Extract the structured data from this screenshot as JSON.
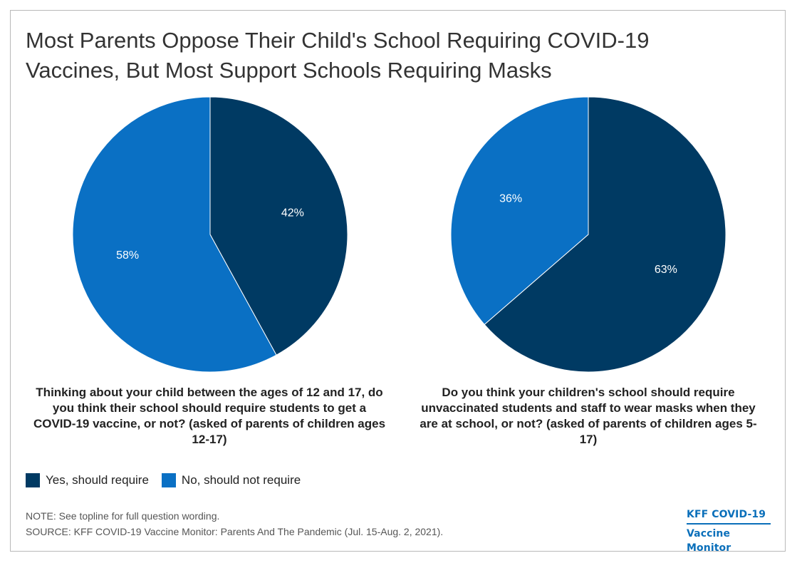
{
  "title": "Most Parents Oppose Their Child's School Requiring COVID-19 Vaccines, But Most Support Schools Requiring Masks",
  "colors": {
    "yes": "#003a63",
    "no": "#0a70c4"
  },
  "chart_data": [
    {
      "type": "pie",
      "title": "Thinking about your child between the ages of 12 and 17, do you think their school should require students to get a COVID-19 vaccine, or not? (asked of parents of children ages 12-17)",
      "slices": [
        {
          "name": "Yes, should require",
          "value": 42,
          "label": "42%"
        },
        {
          "name": "No, should not require",
          "value": 58,
          "label": "58%"
        }
      ]
    },
    {
      "type": "pie",
      "title": "Do you think your children's school should require unvaccinated students and staff to wear masks when they are at school, or not? (asked of parents of children ages 5-17)",
      "slices": [
        {
          "name": "Yes, should require",
          "value": 63,
          "label": "63%"
        },
        {
          "name": "No, should not require",
          "value": 36,
          "label": "36%"
        }
      ]
    }
  ],
  "legend": {
    "yes_label": "Yes, should require",
    "no_label": "No, should not require"
  },
  "note": "NOTE: See topline for full question wording.",
  "source": "SOURCE: KFF COVID-19 Vaccine Monitor: Parents And The Pandemic (Jul. 15-Aug. 2, 2021).",
  "logo": {
    "line1": "KFF COVID-19",
    "line2": "Vaccine Monitor"
  }
}
